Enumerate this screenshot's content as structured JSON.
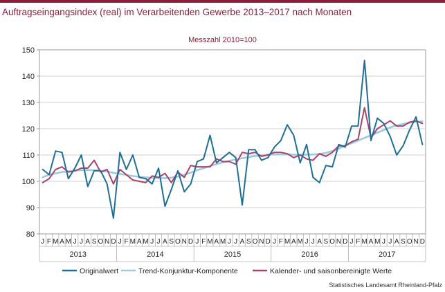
{
  "header": {
    "title": "Auftragseingangsindex (real) im Verarbeitenden Gewerbe 2013–2017 nach Monaten",
    "subtitle": "Messzahl 2010=100"
  },
  "footer": {
    "source": "Statistisches Landesamt Rheinland-Pfalz"
  },
  "colors": {
    "accent": "#8b1d3a",
    "original": "#1f6e94",
    "trend": "#9dcbdd",
    "adjusted": "#a8416c"
  },
  "chart_data": {
    "type": "line",
    "title": "Auftragseingangsindex (real) im Verarbeitenden Gewerbe 2013–2017 nach Monaten",
    "subtitle": "Messzahl 2010=100",
    "xlabel": "",
    "ylabel": "",
    "ylim": [
      80,
      150
    ],
    "yticks": [
      80,
      90,
      100,
      110,
      120,
      130,
      140,
      150
    ],
    "grid": true,
    "legend_position": "bottom",
    "years": [
      "2013",
      "2014",
      "2015",
      "2016",
      "2017"
    ],
    "month_labels": [
      "J",
      "F",
      "M",
      "A",
      "M",
      "J",
      "J",
      "A",
      "S",
      "O",
      "N",
      "D"
    ],
    "series": [
      {
        "name": "Originalwert",
        "color": "#1f6e94",
        "values": [
          104.5,
          102.5,
          111.5,
          111,
          101,
          105,
          110,
          98,
          104,
          104,
          99,
          86,
          111,
          104.5,
          110,
          101.5,
          101,
          99,
          105,
          90.5,
          97,
          104,
          96,
          99,
          107.5,
          108.5,
          117.5,
          107,
          109,
          111,
          109,
          91,
          112,
          112,
          108,
          109,
          113,
          115.5,
          121.5,
          117.5,
          107,
          114,
          101.5,
          99.5,
          106,
          105.5,
          114,
          113,
          121,
          121,
          146,
          115.5,
          124,
          122,
          117,
          110,
          113.5,
          119.5,
          124.5,
          114
        ]
      },
      {
        "name": "Trend-Konjunktur-Komponente",
        "color": "#9dcbdd",
        "values": [
          101.5,
          102.5,
          103,
          103.5,
          103.8,
          104,
          104.2,
          104.3,
          104.2,
          104,
          103.7,
          103.2,
          102.8,
          102.4,
          102,
          101.7,
          101.5,
          101.3,
          101.2,
          101.2,
          101.4,
          101.8,
          102.5,
          103.3,
          104.2,
          105,
          105.8,
          106.5,
          107.2,
          107.8,
          108.3,
          108.8,
          109.2,
          109.6,
          109.9,
          110.1,
          110.2,
          110.2,
          110.2,
          110.1,
          110.1,
          110.1,
          110.2,
          110.4,
          110.8,
          111.5,
          112.5,
          113.5,
          114.5,
          115.5,
          116.5,
          117.5,
          118.5,
          119.5,
          120.5,
          121.2,
          121.8,
          122.2,
          122.6,
          122.8
        ]
      },
      {
        "name": "Kalender- und saisonbereinigte Werte",
        "color": "#a8416c",
        "values": [
          99.5,
          101,
          104.5,
          105.5,
          103.5,
          104,
          105,
          105,
          108,
          103.5,
          104.5,
          99,
          104.5,
          102.5,
          100.5,
          100,
          99.5,
          102,
          101.5,
          103,
          99.5,
          103.5,
          101.5,
          106,
          105.5,
          105.5,
          105.5,
          108.5,
          107.5,
          107.5,
          106.5,
          111,
          110.5,
          111,
          109.5,
          110,
          111,
          111,
          110.5,
          109,
          110,
          108.5,
          108,
          110.5,
          109.5,
          111,
          113.5,
          113.5,
          115,
          116,
          128,
          116.5,
          120,
          121.5,
          123,
          121,
          121,
          122.5,
          123,
          122
        ]
      }
    ]
  }
}
